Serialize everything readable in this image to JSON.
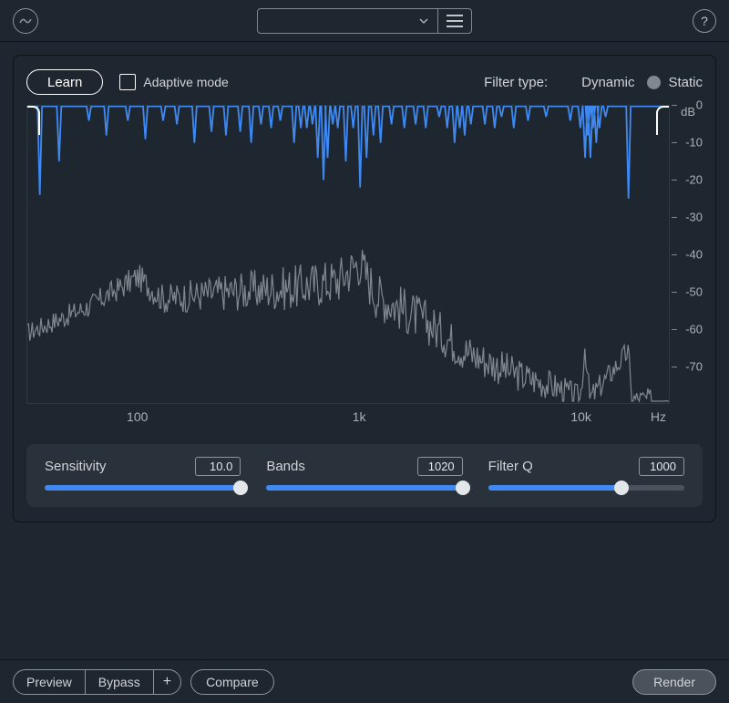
{
  "colors": {
    "accent": "#3f8af2",
    "static_radio": "#7f878f",
    "background": "#1e2730",
    "panel": "#29323b",
    "text": "#d0d4d8",
    "spectrum_line": "#7f878f",
    "filter_line": "#3f8af2",
    "border": "#0f1418"
  },
  "topbar": {
    "preset_value": "",
    "help_glyph": "?"
  },
  "controls": {
    "learn_label": "Learn",
    "adaptive_label": "Adaptive mode",
    "adaptive_checked": false,
    "filter_type_label": "Filter type:",
    "dynamic_label": "Dynamic",
    "static_label": "Static",
    "selected_filter": "dynamic"
  },
  "chart": {
    "type": "spectrum",
    "y_unit": "dB",
    "x_unit": "Hz",
    "ylim": [
      -80,
      0
    ],
    "y_ticks": [
      0,
      -10,
      -20,
      -30,
      -40,
      -50,
      -60,
      -70
    ],
    "xlim_log10": [
      1.5,
      4.4
    ],
    "x_ticks": [
      {
        "v": 100,
        "label": "100"
      },
      {
        "v": 1000,
        "label": "1k"
      },
      {
        "v": 10000,
        "label": "10k"
      }
    ],
    "filter_baseline_db": 0,
    "filter_notches": [
      {
        "hz": 36,
        "depth_db": 24
      },
      {
        "hz": 44,
        "depth_db": 15
      },
      {
        "hz": 60,
        "depth_db": 4
      },
      {
        "hz": 72,
        "depth_db": 8
      },
      {
        "hz": 90,
        "depth_db": 4
      },
      {
        "hz": 108,
        "depth_db": 9
      },
      {
        "hz": 130,
        "depth_db": 4
      },
      {
        "hz": 150,
        "depth_db": 5
      },
      {
        "hz": 180,
        "depth_db": 10
      },
      {
        "hz": 215,
        "depth_db": 7
      },
      {
        "hz": 250,
        "depth_db": 8
      },
      {
        "hz": 290,
        "depth_db": 7
      },
      {
        "hz": 325,
        "depth_db": 10
      },
      {
        "hz": 360,
        "depth_db": 5
      },
      {
        "hz": 400,
        "depth_db": 6
      },
      {
        "hz": 440,
        "depth_db": 4
      },
      {
        "hz": 508,
        "depth_db": 10
      },
      {
        "hz": 545,
        "depth_db": 6
      },
      {
        "hz": 580,
        "depth_db": 6
      },
      {
        "hz": 615,
        "depth_db": 5
      },
      {
        "hz": 650,
        "depth_db": 14
      },
      {
        "hz": 690,
        "depth_db": 20
      },
      {
        "hz": 720,
        "depth_db": 14
      },
      {
        "hz": 760,
        "depth_db": 5
      },
      {
        "hz": 800,
        "depth_db": 6
      },
      {
        "hz": 870,
        "depth_db": 15
      },
      {
        "hz": 940,
        "depth_db": 6
      },
      {
        "hz": 1010,
        "depth_db": 22
      },
      {
        "hz": 1080,
        "depth_db": 14
      },
      {
        "hz": 1160,
        "depth_db": 8
      },
      {
        "hz": 1250,
        "depth_db": 10
      },
      {
        "hz": 1400,
        "depth_db": 5
      },
      {
        "hz": 1600,
        "depth_db": 6
      },
      {
        "hz": 1800,
        "depth_db": 5
      },
      {
        "hz": 2000,
        "depth_db": 6
      },
      {
        "hz": 2300,
        "depth_db": 3
      },
      {
        "hz": 2500,
        "depth_db": 6
      },
      {
        "hz": 2700,
        "depth_db": 10
      },
      {
        "hz": 2850,
        "depth_db": 6
      },
      {
        "hz": 3000,
        "depth_db": 8
      },
      {
        "hz": 3200,
        "depth_db": 5
      },
      {
        "hz": 3700,
        "depth_db": 5
      },
      {
        "hz": 4100,
        "depth_db": 6
      },
      {
        "hz": 4400,
        "depth_db": 3
      },
      {
        "hz": 5000,
        "depth_db": 6
      },
      {
        "hz": 5800,
        "depth_db": 4
      },
      {
        "hz": 7000,
        "depth_db": 3
      },
      {
        "hz": 9000,
        "depth_db": 4
      },
      {
        "hz": 10000,
        "depth_db": 6
      },
      {
        "hz": 10500,
        "depth_db": 14
      },
      {
        "hz": 10800,
        "depth_db": 8
      },
      {
        "hz": 11100,
        "depth_db": 14
      },
      {
        "hz": 11400,
        "depth_db": 6
      },
      {
        "hz": 11800,
        "depth_db": 10
      },
      {
        "hz": 12200,
        "depth_db": 6
      },
      {
        "hz": 13000,
        "depth_db": 3
      },
      {
        "hz": 16500,
        "depth_db": 25
      }
    ],
    "spectrum_seed": 17,
    "spectrum_anchor_points": [
      {
        "hz": 32,
        "db": -61
      },
      {
        "hz": 60,
        "db": -54
      },
      {
        "hz": 100,
        "db": -46
      },
      {
        "hz": 130,
        "db": -52
      },
      {
        "hz": 260,
        "db": -50
      },
      {
        "hz": 500,
        "db": -49
      },
      {
        "hz": 800,
        "db": -47
      },
      {
        "hz": 1000,
        "db": -42
      },
      {
        "hz": 1200,
        "db": -51
      },
      {
        "hz": 2000,
        "db": -58
      },
      {
        "hz": 3000,
        "db": -66
      },
      {
        "hz": 5000,
        "db": -72
      },
      {
        "hz": 8000,
        "db": -76
      },
      {
        "hz": 10000,
        "db": -79
      },
      {
        "hz": 10500,
        "db": -64
      },
      {
        "hz": 11000,
        "db": -79
      },
      {
        "hz": 16500,
        "db": -66
      },
      {
        "hz": 17000,
        "db": -79
      },
      {
        "hz": 25000,
        "db": -79
      }
    ],
    "line_width_filter": 1.8,
    "line_width_spectrum": 1.2
  },
  "sliders": [
    {
      "id": "sensitivity",
      "label": "Sensitivity",
      "value_text": "10.0",
      "fill_pct": 100
    },
    {
      "id": "bands",
      "label": "Bands",
      "value_text": "1020",
      "fill_pct": 100
    },
    {
      "id": "filter-q",
      "label": "Filter Q",
      "value_text": "1000",
      "fill_pct": 68
    }
  ],
  "bottombar": {
    "preview": "Preview",
    "bypass": "Bypass",
    "plus": "+",
    "compare": "Compare",
    "render": "Render"
  }
}
